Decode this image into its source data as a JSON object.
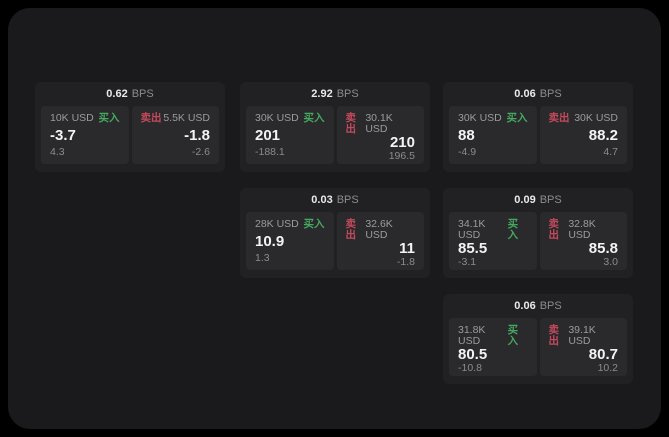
{
  "labels": {
    "bps_unit": "BPS",
    "buy": "买入",
    "sell": "卖出"
  },
  "colors": {
    "background": "#000000",
    "panel": "#1a1a1c",
    "card": "#212123",
    "subpanel": "#2a2a2c",
    "buy_green": "#44a85f",
    "sell_red": "#c4495c"
  },
  "cards": [
    {
      "bps": "0.62",
      "buy": {
        "size": "10K USD",
        "price": "-3.7",
        "delta": "4.3"
      },
      "sell": {
        "size": "5.5K USD",
        "price": "-1.8",
        "delta": "-2.6"
      }
    },
    {
      "bps": "2.92",
      "buy": {
        "size": "30K USD",
        "price": "201",
        "delta": "-188.1"
      },
      "sell": {
        "size": "30.1K USD",
        "price": "210",
        "delta": "196.5"
      }
    },
    {
      "bps": "0.06",
      "buy": {
        "size": "30K USD",
        "price": "88",
        "delta": "-4.9"
      },
      "sell": {
        "size": "30K USD",
        "price": "88.2",
        "delta": "4.7"
      }
    },
    {
      "bps": "0.03",
      "buy": {
        "size": "28K USD",
        "price": "10.9",
        "delta": "1.3"
      },
      "sell": {
        "size": "32.6K USD",
        "price": "11",
        "delta": "-1.8"
      }
    },
    {
      "bps": "0.09",
      "buy": {
        "size": "34.1K USD",
        "price": "85.5",
        "delta": "-3.1"
      },
      "sell": {
        "size": "32.8K USD",
        "price": "85.8",
        "delta": "3.0"
      }
    },
    {
      "bps": "0.06",
      "buy": {
        "size": "31.8K USD",
        "price": "80.5",
        "delta": "-10.8"
      },
      "sell": {
        "size": "39.1K USD",
        "price": "80.7",
        "delta": "10.2"
      }
    }
  ]
}
